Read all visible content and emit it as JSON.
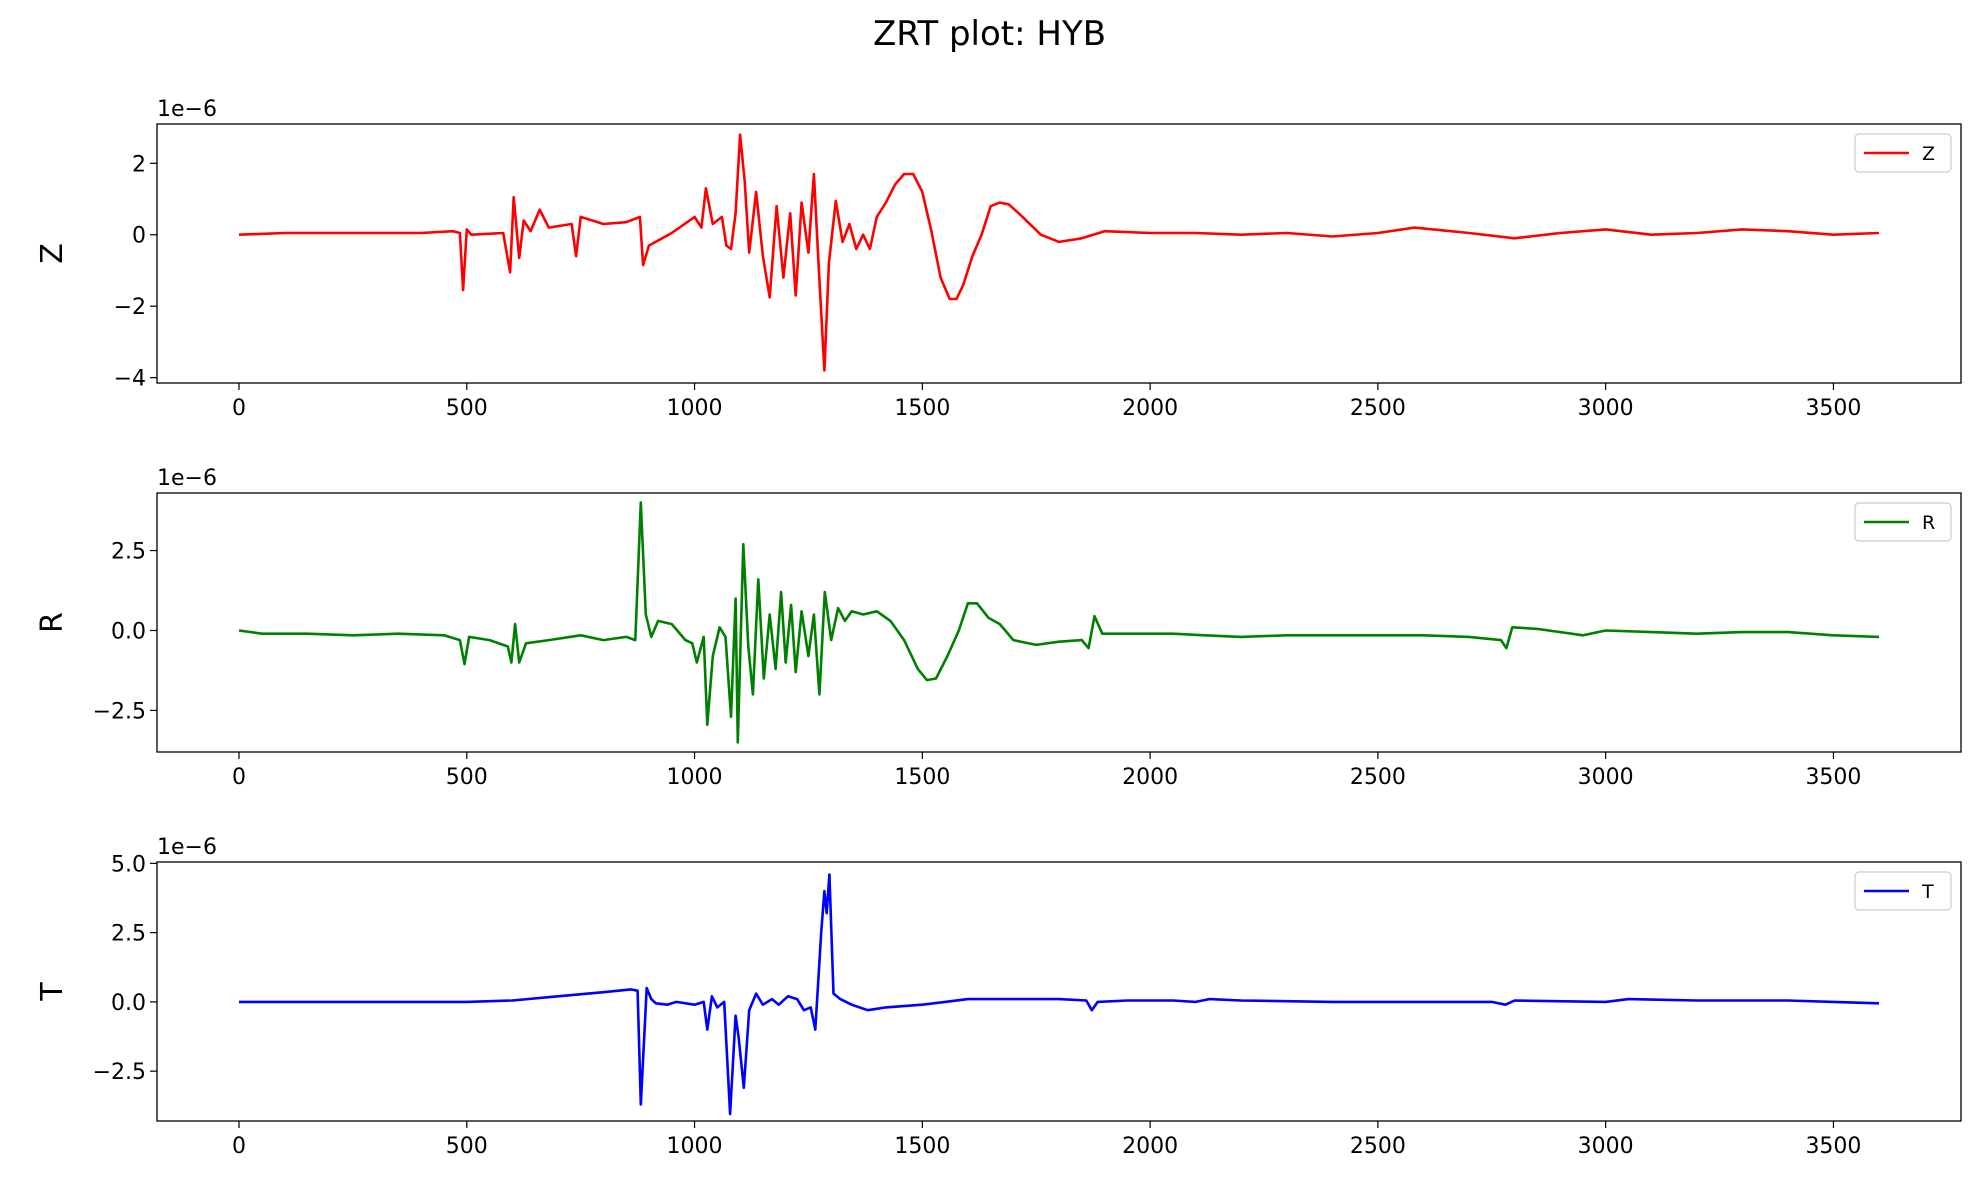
{
  "title": "ZRT plot: HYB",
  "chart_data": [
    {
      "type": "line",
      "name": "Z",
      "ylabel": "Z",
      "offset_label": "1e−6",
      "xlim": [
        -180,
        3780
      ],
      "ylim": [
        -4.15,
        3.1
      ],
      "xticks": [
        0,
        500,
        1000,
        1500,
        2000,
        2500,
        3000,
        3500
      ],
      "yticks": [
        {
          "v": 2,
          "t": "2"
        },
        {
          "v": 0,
          "t": "0"
        },
        {
          "v": -2,
          "t": "−2"
        },
        {
          "v": -4,
          "t": "−4"
        }
      ],
      "color": "#ff0000",
      "legend": {
        "label": "Z",
        "loc": "upper right"
      },
      "series": [
        {
          "name": "Z",
          "points": [
            [
              0,
              0
            ],
            [
              100,
              0.05
            ],
            [
              200,
              0.05
            ],
            [
              300,
              0.05
            ],
            [
              400,
              0.05
            ],
            [
              470,
              0.1
            ],
            [
              485,
              0.05
            ],
            [
              492,
              -1.55
            ],
            [
              500,
              0.15
            ],
            [
              510,
              0
            ],
            [
              580,
              0.05
            ],
            [
              595,
              -1.05
            ],
            [
              603,
              1.05
            ],
            [
              615,
              -0.65
            ],
            [
              625,
              0.4
            ],
            [
              640,
              0.1
            ],
            [
              660,
              0.7
            ],
            [
              680,
              0.2
            ],
            [
              730,
              0.3
            ],
            [
              740,
              -0.6
            ],
            [
              750,
              0.5
            ],
            [
              800,
              0.3
            ],
            [
              850,
              0.35
            ],
            [
              880,
              0.5
            ],
            [
              887,
              -0.85
            ],
            [
              900,
              -0.3
            ],
            [
              950,
              0.05
            ],
            [
              1000,
              0.5
            ],
            [
              1015,
              0.2
            ],
            [
              1025,
              1.3
            ],
            [
              1040,
              0.3
            ],
            [
              1060,
              0.5
            ],
            [
              1070,
              -0.3
            ],
            [
              1080,
              -0.4
            ],
            [
              1090,
              0.6
            ],
            [
              1100,
              2.8
            ],
            [
              1110,
              1.5
            ],
            [
              1120,
              -0.5
            ],
            [
              1135,
              1.2
            ],
            [
              1150,
              -0.6
            ],
            [
              1165,
              -1.75
            ],
            [
              1180,
              0.8
            ],
            [
              1195,
              -1.2
            ],
            [
              1210,
              0.6
            ],
            [
              1222,
              -1.7
            ],
            [
              1235,
              0.9
            ],
            [
              1250,
              -0.5
            ],
            [
              1262,
              1.7
            ],
            [
              1273,
              -1.0
            ],
            [
              1285,
              -3.8
            ],
            [
              1295,
              -0.8
            ],
            [
              1310,
              0.95
            ],
            [
              1325,
              -0.2
            ],
            [
              1340,
              0.3
            ],
            [
              1355,
              -0.4
            ],
            [
              1370,
              0
            ],
            [
              1385,
              -0.4
            ],
            [
              1400,
              0.5
            ],
            [
              1420,
              0.9
            ],
            [
              1440,
              1.4
            ],
            [
              1460,
              1.7
            ],
            [
              1480,
              1.7
            ],
            [
              1500,
              1.2
            ],
            [
              1520,
              0.1
            ],
            [
              1540,
              -1.2
            ],
            [
              1560,
              -1.8
            ],
            [
              1575,
              -1.8
            ],
            [
              1590,
              -1.4
            ],
            [
              1610,
              -0.6
            ],
            [
              1630,
              0
            ],
            [
              1650,
              0.8
            ],
            [
              1670,
              0.9
            ],
            [
              1690,
              0.85
            ],
            [
              1720,
              0.5
            ],
            [
              1760,
              0
            ],
            [
              1800,
              -0.2
            ],
            [
              1850,
              -0.1
            ],
            [
              1900,
              0.1
            ],
            [
              2000,
              0.05
            ],
            [
              2100,
              0.05
            ],
            [
              2200,
              0
            ],
            [
              2300,
              0.05
            ],
            [
              2400,
              -0.05
            ],
            [
              2500,
              0.05
            ],
            [
              2580,
              0.2
            ],
            [
              2700,
              0.05
            ],
            [
              2800,
              -0.1
            ],
            [
              2900,
              0.05
            ],
            [
              3000,
              0.15
            ],
            [
              3100,
              0
            ],
            [
              3200,
              0.05
            ],
            [
              3300,
              0.15
            ],
            [
              3400,
              0.1
            ],
            [
              3500,
              0
            ],
            [
              3600,
              0.05
            ]
          ]
        }
      ]
    },
    {
      "type": "line",
      "name": "R",
      "ylabel": "R",
      "offset_label": "1e−6",
      "xlim": [
        -180,
        3780
      ],
      "ylim": [
        -3.8,
        4.3
      ],
      "xticks": [
        0,
        500,
        1000,
        1500,
        2000,
        2500,
        3000,
        3500
      ],
      "yticks": [
        {
          "v": 2.5,
          "t": "2.5"
        },
        {
          "v": 0,
          "t": "0.0"
        },
        {
          "v": -2.5,
          "t": "−2.5"
        }
      ],
      "color": "#008000",
      "legend": {
        "label": "R",
        "loc": "upper right"
      },
      "series": [
        {
          "name": "R",
          "points": [
            [
              0,
              0
            ],
            [
              50,
              -0.1
            ],
            [
              150,
              -0.1
            ],
            [
              250,
              -0.15
            ],
            [
              350,
              -0.1
            ],
            [
              450,
              -0.15
            ],
            [
              485,
              -0.3
            ],
            [
              495,
              -1.05
            ],
            [
              505,
              -0.2
            ],
            [
              550,
              -0.3
            ],
            [
              590,
              -0.5
            ],
            [
              598,
              -1.0
            ],
            [
              606,
              0.2
            ],
            [
              615,
              -1.0
            ],
            [
              630,
              -0.4
            ],
            [
              680,
              -0.3
            ],
            [
              750,
              -0.15
            ],
            [
              800,
              -0.3
            ],
            [
              850,
              -0.2
            ],
            [
              870,
              -0.3
            ],
            [
              882,
              4.0
            ],
            [
              893,
              0.5
            ],
            [
              905,
              -0.2
            ],
            [
              920,
              0.3
            ],
            [
              950,
              0.2
            ],
            [
              980,
              -0.3
            ],
            [
              995,
              -0.4
            ],
            [
              1005,
              -1.0
            ],
            [
              1020,
              -0.2
            ],
            [
              1028,
              -2.95
            ],
            [
              1040,
              -0.8
            ],
            [
              1055,
              0.1
            ],
            [
              1068,
              -0.2
            ],
            [
              1080,
              -2.7
            ],
            [
              1090,
              1.0
            ],
            [
              1095,
              -3.5
            ],
            [
              1107,
              2.7
            ],
            [
              1118,
              -0.5
            ],
            [
              1128,
              -2.0
            ],
            [
              1140,
              1.6
            ],
            [
              1152,
              -1.5
            ],
            [
              1165,
              0.5
            ],
            [
              1178,
              -1.2
            ],
            [
              1190,
              1.2
            ],
            [
              1200,
              -1.0
            ],
            [
              1212,
              0.8
            ],
            [
              1222,
              -1.3
            ],
            [
              1235,
              0.6
            ],
            [
              1250,
              -0.8
            ],
            [
              1262,
              0.5
            ],
            [
              1274,
              -2.0
            ],
            [
              1286,
              1.2
            ],
            [
              1300,
              -0.3
            ],
            [
              1315,
              0.7
            ],
            [
              1330,
              0.3
            ],
            [
              1345,
              0.6
            ],
            [
              1370,
              0.5
            ],
            [
              1400,
              0.6
            ],
            [
              1430,
              0.3
            ],
            [
              1460,
              -0.3
            ],
            [
              1490,
              -1.2
            ],
            [
              1510,
              -1.55
            ],
            [
              1530,
              -1.5
            ],
            [
              1555,
              -0.8
            ],
            [
              1580,
              0
            ],
            [
              1600,
              0.85
            ],
            [
              1620,
              0.85
            ],
            [
              1645,
              0.4
            ],
            [
              1670,
              0.2
            ],
            [
              1700,
              -0.3
            ],
            [
              1750,
              -0.45
            ],
            [
              1800,
              -0.35
            ],
            [
              1850,
              -0.3
            ],
            [
              1865,
              -0.55
            ],
            [
              1878,
              0.45
            ],
            [
              1895,
              -0.1
            ],
            [
              1950,
              -0.1
            ],
            [
              2050,
              -0.1
            ],
            [
              2120,
              -0.15
            ],
            [
              2200,
              -0.2
            ],
            [
              2300,
              -0.15
            ],
            [
              2400,
              -0.15
            ],
            [
              2500,
              -0.15
            ],
            [
              2600,
              -0.15
            ],
            [
              2700,
              -0.2
            ],
            [
              2770,
              -0.3
            ],
            [
              2782,
              -0.55
            ],
            [
              2795,
              0.1
            ],
            [
              2850,
              0.05
            ],
            [
              2950,
              -0.15
            ],
            [
              3000,
              0
            ],
            [
              3100,
              -0.05
            ],
            [
              3200,
              -0.1
            ],
            [
              3300,
              -0.05
            ],
            [
              3400,
              -0.05
            ],
            [
              3500,
              -0.15
            ],
            [
              3600,
              -0.2
            ]
          ]
        }
      ]
    },
    {
      "type": "line",
      "name": "T",
      "ylabel": "T",
      "offset_label": "1e−6",
      "xlim": [
        -180,
        3780
      ],
      "ylim": [
        -4.3,
        5.05
      ],
      "xticks": [
        0,
        500,
        1000,
        1500,
        2000,
        2500,
        3000,
        3500
      ],
      "yticks": [
        {
          "v": 5.0,
          "t": "5.0"
        },
        {
          "v": 2.5,
          "t": "2.5"
        },
        {
          "v": 0,
          "t": "0.0"
        },
        {
          "v": -2.5,
          "t": "−2.5"
        }
      ],
      "color": "#0000ff",
      "legend": {
        "label": "T",
        "loc": "upper right"
      },
      "series": [
        {
          "name": "T",
          "points": [
            [
              0,
              0
            ],
            [
              200,
              0
            ],
            [
              400,
              0
            ],
            [
              500,
              0
            ],
            [
              600,
              0.05
            ],
            [
              700,
              0.2
            ],
            [
              800,
              0.35
            ],
            [
              860,
              0.45
            ],
            [
              875,
              0.4
            ],
            [
              882,
              -3.7
            ],
            [
              895,
              0.5
            ],
            [
              905,
              0.1
            ],
            [
              915,
              -0.05
            ],
            [
              940,
              -0.1
            ],
            [
              960,
              0
            ],
            [
              1000,
              -0.1
            ],
            [
              1020,
              0
            ],
            [
              1028,
              -1.0
            ],
            [
              1038,
              0.2
            ],
            [
              1050,
              -0.2
            ],
            [
              1065,
              0
            ],
            [
              1078,
              -4.05
            ],
            [
              1090,
              -0.5
            ],
            [
              1097,
              -1.3
            ],
            [
              1108,
              -3.1
            ],
            [
              1120,
              -0.3
            ],
            [
              1135,
              0.3
            ],
            [
              1150,
              -0.1
            ],
            [
              1170,
              0.1
            ],
            [
              1185,
              -0.1
            ],
            [
              1205,
              0.2
            ],
            [
              1225,
              0.1
            ],
            [
              1240,
              -0.3
            ],
            [
              1255,
              -0.2
            ],
            [
              1265,
              -1.0
            ],
            [
              1278,
              2.5
            ],
            [
              1285,
              4.0
            ],
            [
              1290,
              3.2
            ],
            [
              1296,
              4.6
            ],
            [
              1305,
              0.3
            ],
            [
              1320,
              0.1
            ],
            [
              1345,
              -0.1
            ],
            [
              1380,
              -0.3
            ],
            [
              1420,
              -0.2
            ],
            [
              1500,
              -0.1
            ],
            [
              1550,
              0
            ],
            [
              1600,
              0.1
            ],
            [
              1700,
              0.1
            ],
            [
              1800,
              0.1
            ],
            [
              1860,
              0.05
            ],
            [
              1872,
              -0.3
            ],
            [
              1885,
              0
            ],
            [
              1950,
              0.05
            ],
            [
              2050,
              0.05
            ],
            [
              2100,
              0
            ],
            [
              2130,
              0.1
            ],
            [
              2200,
              0.05
            ],
            [
              2400,
              0
            ],
            [
              2600,
              0
            ],
            [
              2750,
              0
            ],
            [
              2780,
              -0.1
            ],
            [
              2800,
              0.05
            ],
            [
              3000,
              0
            ],
            [
              3050,
              0.1
            ],
            [
              3200,
              0.05
            ],
            [
              3400,
              0.05
            ],
            [
              3500,
              0
            ],
            [
              3600,
              -0.05
            ]
          ]
        }
      ]
    }
  ]
}
